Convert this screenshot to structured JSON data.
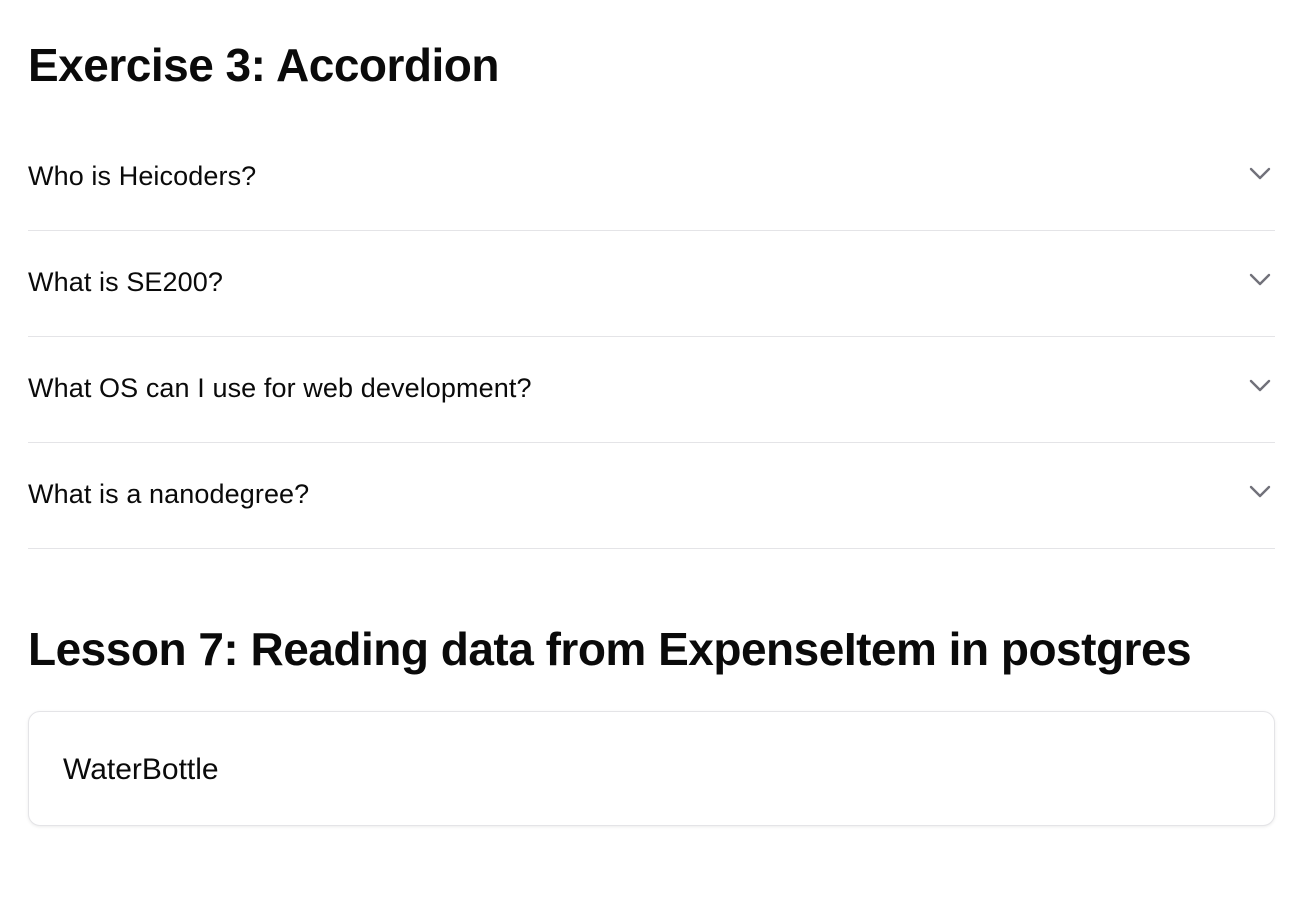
{
  "exercise": {
    "title": "Exercise 3: Accordion",
    "items": [
      {
        "label": "Who is Heicoders?",
        "icon": "chevron-down-icon",
        "expanded": false
      },
      {
        "label": "What is SE200?",
        "icon": "chevron-down-icon",
        "expanded": false
      },
      {
        "label": "What OS can I use for web development?",
        "icon": "chevron-down-icon",
        "expanded": false
      },
      {
        "label": "What is a nanodegree?",
        "icon": "chevron-down-icon",
        "expanded": false
      }
    ]
  },
  "lesson": {
    "title": "Lesson 7: Reading data from ExpenseItem in postgres",
    "card": {
      "text": "WaterBottle"
    }
  },
  "colors": {
    "text": "#0a0a0a",
    "divider": "#e4e4e7",
    "chevron": "#71717a"
  }
}
